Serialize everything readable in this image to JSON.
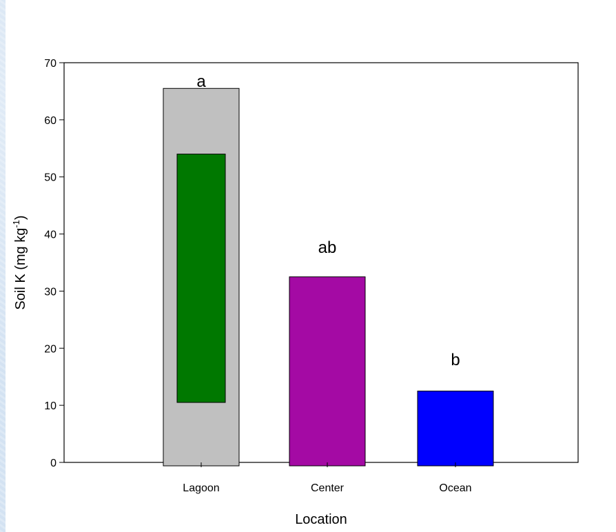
{
  "chart_data": {
    "type": "bar",
    "title": "",
    "xlabel": "Location",
    "ylabel": {
      "base": "Soil K (mg kg",
      "superscript": "-1",
      "close": ")"
    },
    "ylim": [
      0,
      70
    ],
    "yticks": [
      0,
      10,
      20,
      30,
      40,
      50,
      60,
      70
    ],
    "categories": [
      "Lagoon",
      "Center",
      "Ocean"
    ],
    "bars": [
      {
        "category": "Lagoon",
        "value": 65.5,
        "color": "#c0c0c0",
        "letter": "a"
      },
      {
        "category": "Center",
        "value": 32.5,
        "color": "#a40aa4",
        "letter": "ab"
      },
      {
        "category": "Ocean",
        "value": 12.5,
        "color": "#0000ff",
        "letter": "b"
      }
    ],
    "inner_box": {
      "category": "Lagoon",
      "low": 10.5,
      "high": 54,
      "color": "#007800"
    },
    "grid": false,
    "legend": "none"
  }
}
